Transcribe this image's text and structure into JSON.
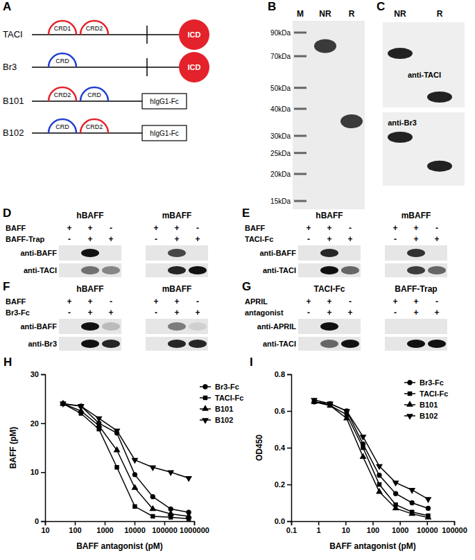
{
  "diagram": {
    "panel_label": "A",
    "constructs": [
      {
        "name": "TACI",
        "domains": [
          {
            "label": "CRD1",
            "color": "#e4222b"
          },
          {
            "label": "CRD2",
            "color": "#e4222b"
          }
        ],
        "transmembrane": true,
        "tail": {
          "type": "icd",
          "label": "ICD",
          "color": "#e4222b"
        }
      },
      {
        "name": "Br3",
        "domains": [
          {
            "label": "CRD",
            "color": "#1f3fd1"
          }
        ],
        "transmembrane": true,
        "tail": {
          "type": "icd",
          "label": "ICD",
          "color": "#e4222b"
        }
      },
      {
        "name": "B101",
        "domains": [
          {
            "label": "CRD2",
            "color": "#e4222b"
          },
          {
            "label": "CRD",
            "color": "#1f3fd1"
          }
        ],
        "transmembrane": false,
        "tail": {
          "type": "fc",
          "label": "hIgG1-Fc"
        }
      },
      {
        "name": "B102",
        "domains": [
          {
            "label": "CRD",
            "color": "#1f3fd1"
          },
          {
            "label": "CRD2",
            "color": "#e4222b"
          }
        ],
        "transmembrane": false,
        "tail": {
          "type": "fc",
          "label": "hIgG1-Fc"
        }
      }
    ]
  },
  "gel": {
    "panel_label": "B",
    "lanes": [
      "M",
      "NR",
      "R"
    ],
    "markers": [
      {
        "value": 90,
        "label": "90kDa"
      },
      {
        "value": 70,
        "label": "70kDa"
      },
      {
        "value": 50,
        "label": "50kDa"
      },
      {
        "value": 40,
        "label": "40kDa"
      },
      {
        "value": 30,
        "label": "30kDa"
      },
      {
        "value": 25,
        "label": "25kDa"
      },
      {
        "value": 20,
        "label": "20kDa"
      },
      {
        "value": 15,
        "label": "15kDa"
      }
    ],
    "band_kda": [
      null,
      78,
      35
    ]
  },
  "western": {
    "panel_label": "C",
    "lanes": [
      "NR",
      "R"
    ],
    "blots": [
      {
        "antibody": "anti-TACI",
        "band_kda": [
          75,
          35
        ]
      },
      {
        "antibody": "anti-Br3",
        "band_kda": [
          75,
          35
        ]
      }
    ]
  },
  "blots": [
    {
      "panel_label": "D",
      "treatments": [
        "BAFF",
        "BAFF-Trap"
      ],
      "antibodies": [
        "anti-BAFF",
        "anti-TACI"
      ],
      "groups": [
        {
          "title": "hBAFF",
          "signs": [
            [
              "+",
              "+",
              "-"
            ],
            [
              "-",
              "+",
              "+"
            ]
          ],
          "bands": [
            [
              0,
              1,
              0
            ],
            [
              0,
              0.55,
              0.45
            ]
          ]
        },
        {
          "title": "mBAFF",
          "signs": [
            [
              "+",
              "+",
              "-"
            ],
            [
              "-",
              "+",
              "+"
            ]
          ],
          "bands": [
            [
              0,
              0.75,
              0
            ],
            [
              0,
              0.9,
              1
            ]
          ]
        }
      ]
    },
    {
      "panel_label": "E",
      "treatments": [
        "BAFF",
        "TACI-Fc"
      ],
      "antibodies": [
        "anti-BAFF",
        "anti-TACI"
      ],
      "groups": [
        {
          "title": "hBAFF",
          "signs": [
            [
              "+",
              "+",
              "-"
            ],
            [
              "-",
              "+",
              "+"
            ]
          ],
          "bands": [
            [
              0,
              0.9,
              0
            ],
            [
              0,
              1,
              0.6
            ]
          ]
        },
        {
          "title": "mBAFF",
          "signs": [
            [
              "+",
              "+",
              "-"
            ],
            [
              "-",
              "+",
              "+"
            ]
          ],
          "bands": [
            [
              0,
              0.85,
              0
            ],
            [
              0,
              0.8,
              0.6
            ]
          ]
        }
      ]
    },
    {
      "panel_label": "F",
      "treatments": [
        "BAFF",
        "Br3-Fc"
      ],
      "antibodies": [
        "anti-BAFF",
        "anti-Br3"
      ],
      "groups": [
        {
          "title": "hBAFF",
          "signs": [
            [
              "+",
              "+",
              "-"
            ],
            [
              "-",
              "+",
              "+"
            ]
          ],
          "bands": [
            [
              0,
              1,
              0.2
            ],
            [
              0,
              1,
              0.9
            ]
          ]
        },
        {
          "title": "mBAFF",
          "signs": [
            [
              "+",
              "+",
              "-"
            ],
            [
              "-",
              "+",
              "+"
            ]
          ],
          "bands": [
            [
              0,
              0.5,
              0.1
            ],
            [
              0,
              0.9,
              0.9
            ]
          ]
        }
      ]
    },
    {
      "panel_label": "G",
      "treatments": [
        "APRIL",
        "antagonist"
      ],
      "antibodies": [
        "anti-APRIL",
        "anti-TACI"
      ],
      "groups": [
        {
          "title": "TACI-Fc",
          "signs": [
            [
              "+",
              "+",
              "-"
            ],
            [
              "-",
              "+",
              "+"
            ]
          ],
          "bands": [
            [
              0,
              1,
              0
            ],
            [
              0,
              0.6,
              1
            ]
          ]
        },
        {
          "title": "BAFF-Trap",
          "signs": [
            [
              "+",
              "+",
              "-"
            ],
            [
              "-",
              "+",
              "+"
            ]
          ],
          "bands": [
            [
              0,
              0,
              0
            ],
            [
              0,
              1,
              1
            ]
          ]
        }
      ]
    }
  ],
  "chart_data": [
    {
      "panel_label": "H",
      "type": "line",
      "log": "x",
      "xlabel": "BAFF antagonist (pM)",
      "ylabel": "BAFF (pM)",
      "x": [
        40,
        160,
        640,
        2560,
        10240,
        40960,
        163840,
        655360
      ],
      "xlim": [
        10,
        1000000
      ],
      "xticks": [
        10,
        100,
        1000,
        10000,
        100000,
        1000000
      ],
      "ylim": [
        0,
        30
      ],
      "yticks": [
        0,
        10,
        20,
        30
      ],
      "legend": "right",
      "series": [
        {
          "name": "Br3-Fc",
          "color": "#000000",
          "marker": "circle",
          "values": [
            24,
            23.5,
            20,
            18,
            9.5,
            5,
            2.5,
            1.8
          ]
        },
        {
          "name": "TACI-Fc",
          "color": "#000000",
          "marker": "square",
          "values": [
            24,
            22,
            18.8,
            11,
            3,
            1,
            0.8,
            0.5
          ]
        },
        {
          "name": "B101",
          "color": "#000000",
          "marker": "triangle",
          "values": [
            24,
            22.5,
            19.5,
            14.5,
            6.8,
            2.5,
            1.5,
            1
          ]
        },
        {
          "name": "B102",
          "color": "#000000",
          "marker": "triangle-down",
          "values": [
            24,
            23.5,
            21,
            18.5,
            12.5,
            11,
            10,
            8.8
          ]
        }
      ]
    },
    {
      "panel_label": "I",
      "type": "line",
      "log": "x",
      "xlabel": "BAFF antagonist (pM)",
      "ylabel": "OD450",
      "x": [
        0.7,
        2.7,
        11,
        44,
        175,
        700,
        2800,
        11000
      ],
      "xlim": [
        0.1,
        100000
      ],
      "xticks": [
        0.1,
        1,
        10,
        100,
        1000,
        10000,
        100000
      ],
      "ylim": [
        0,
        0.8
      ],
      "yticks": [
        {
          "value": 0,
          "label": "0.0"
        },
        0.2,
        0.4,
        0.6,
        0.8
      ],
      "legend": "top-right",
      "series": [
        {
          "name": "Br3-Fc",
          "color": "#000000",
          "marker": "circle",
          "values": [
            0.65,
            0.64,
            0.6,
            0.42,
            0.25,
            0.15,
            0.1,
            0.07
          ]
        },
        {
          "name": "TACI-Fc",
          "color": "#000000",
          "marker": "square",
          "values": [
            0.65,
            0.63,
            0.58,
            0.4,
            0.2,
            0.09,
            0.05,
            0.03
          ]
        },
        {
          "name": "B101",
          "color": "#000000",
          "marker": "triangle",
          "values": [
            0.65,
            0.63,
            0.56,
            0.35,
            0.16,
            0.07,
            0.04,
            0.02
          ]
        },
        {
          "name": "B102",
          "color": "#000000",
          "marker": "triangle-down",
          "values": [
            0.66,
            0.64,
            0.6,
            0.46,
            0.3,
            0.21,
            0.17,
            0.12
          ]
        }
      ]
    }
  ]
}
